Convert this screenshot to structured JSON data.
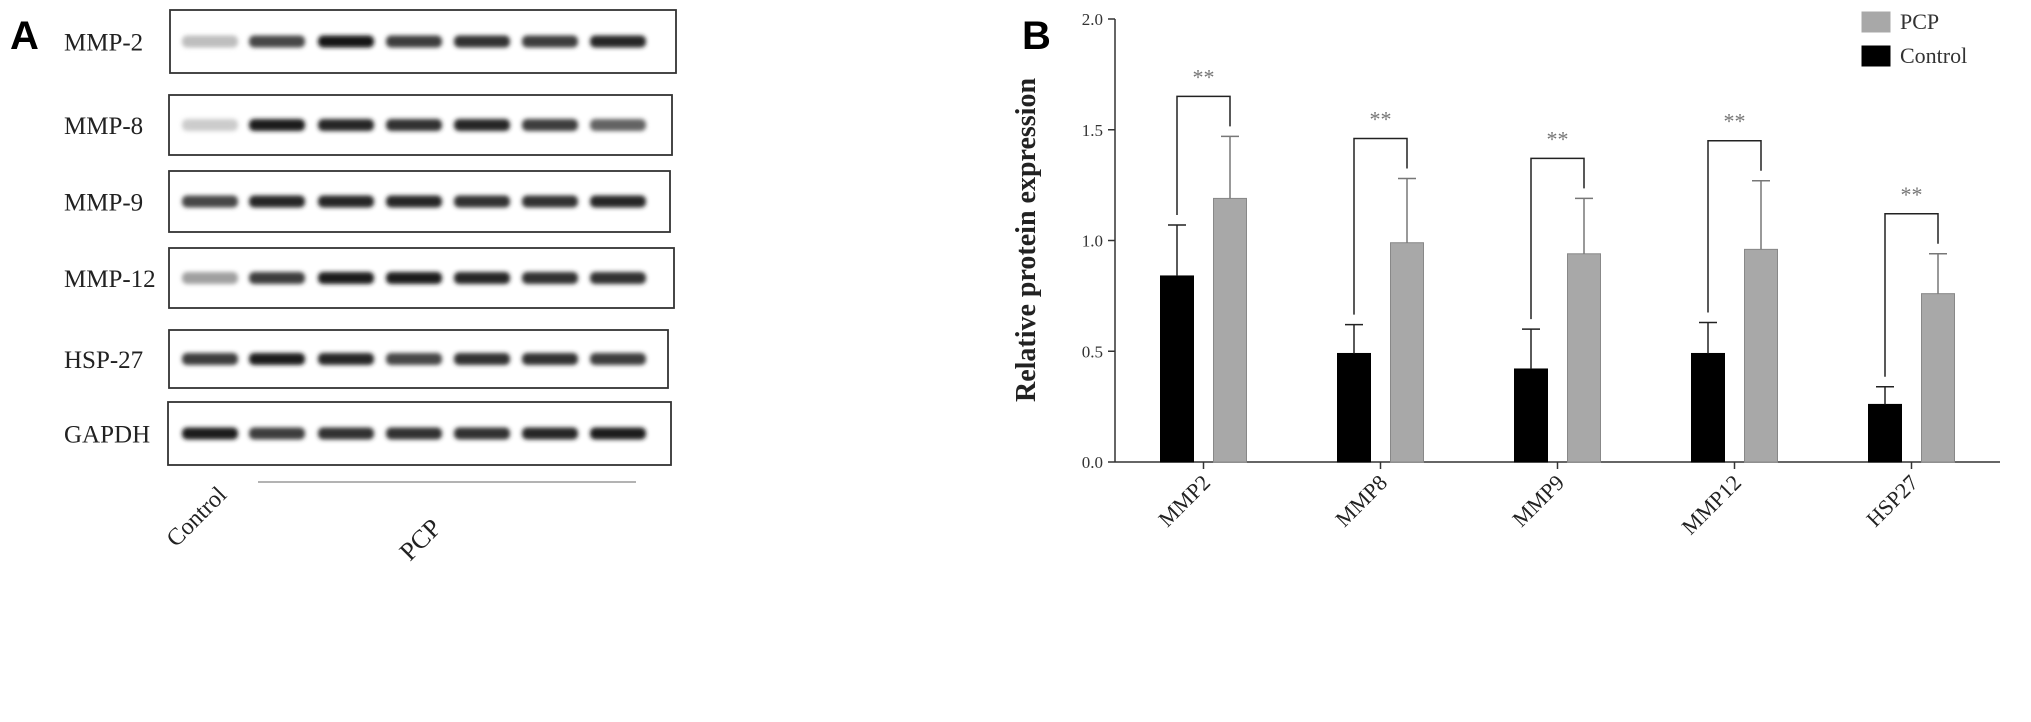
{
  "panel_a": {
    "letter": "A",
    "rows": [
      "MMP-2",
      "MMP-8",
      "MMP-9",
      "MMP-12",
      "HSP-27",
      "GAPDH"
    ],
    "group_control": "Control",
    "group_pcp": "PCP"
  },
  "panel_b": {
    "letter": "B"
  },
  "chart_data": {
    "type": "bar",
    "categories": [
      "MMP2",
      "MMP8",
      "MMP9",
      "MMP12",
      "HSP27"
    ],
    "series": [
      {
        "name": "Control",
        "color": "#000000",
        "values": [
          0.84,
          0.49,
          0.42,
          0.49,
          0.26
        ],
        "errors": [
          0.23,
          0.13,
          0.18,
          0.14,
          0.08
        ]
      },
      {
        "name": "PCP",
        "color": "#a8a8a8",
        "values": [
          1.19,
          0.99,
          0.94,
          0.96,
          0.76
        ],
        "errors": [
          0.28,
          0.29,
          0.25,
          0.31,
          0.18
        ]
      }
    ],
    "significance": [
      "**",
      "**",
      "**",
      "**",
      "**"
    ],
    "ylabel": "Relative protein expression",
    "xlabel": "",
    "ylim": [
      0,
      2.0
    ],
    "yticks": [
      "0.0",
      "0.5",
      "1.0",
      "1.5",
      "2.0"
    ],
    "legend": {
      "placement": "top-right",
      "order": [
        "PCP",
        "Control"
      ]
    },
    "grid": false
  }
}
